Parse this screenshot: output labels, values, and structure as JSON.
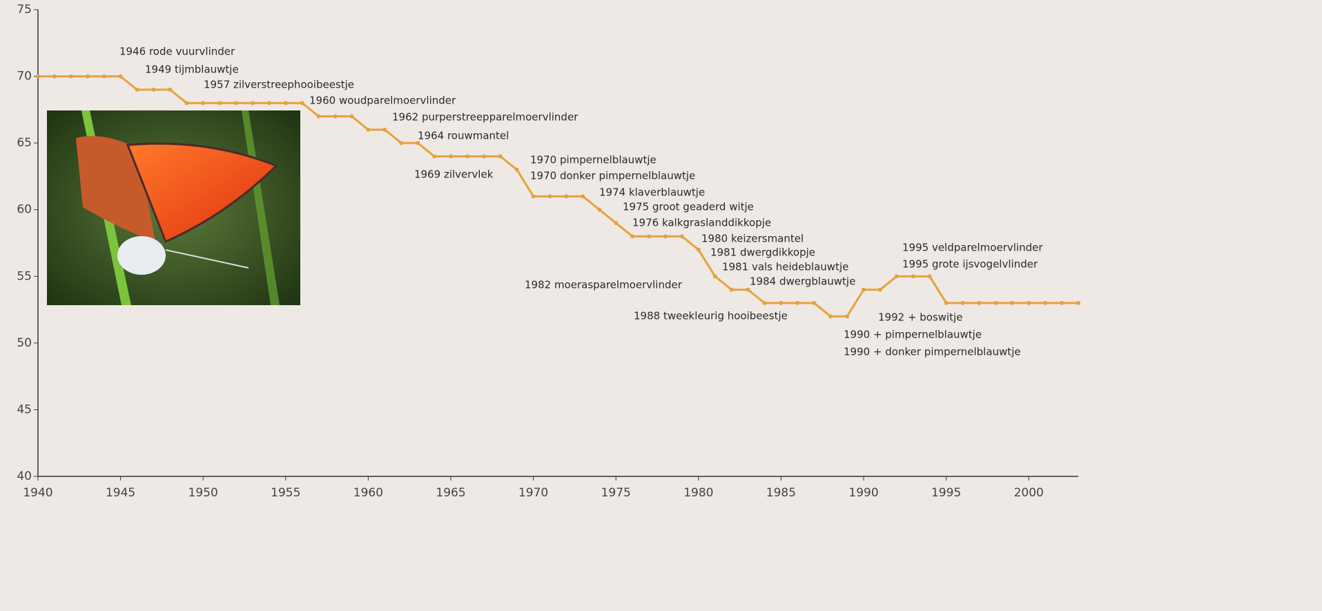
{
  "chart_data": {
    "type": "line",
    "x": [
      1940,
      1941,
      1942,
      1943,
      1944,
      1945,
      1946,
      1947,
      1948,
      1949,
      1950,
      1951,
      1952,
      1953,
      1954,
      1955,
      1956,
      1957,
      1958,
      1959,
      1960,
      1961,
      1962,
      1963,
      1964,
      1965,
      1966,
      1967,
      1968,
      1969,
      1970,
      1971,
      1972,
      1973,
      1974,
      1975,
      1976,
      1977,
      1978,
      1979,
      1980,
      1981,
      1982,
      1983,
      1984,
      1985,
      1986,
      1987,
      1988,
      1989,
      1990,
      1991,
      1992,
      1993,
      1994,
      1995,
      1996,
      1997,
      1998,
      1999,
      2000,
      2001,
      2002,
      2003
    ],
    "values": [
      70,
      70,
      70,
      70,
      70,
      70,
      69,
      69,
      69,
      68,
      68,
      68,
      68,
      68,
      68,
      68,
      68,
      67,
      67,
      67,
      66,
      66,
      65,
      65,
      64,
      64,
      64,
      64,
      64,
      63,
      61,
      61,
      61,
      61,
      60,
      59,
      58,
      58,
      58,
      58,
      57,
      55,
      54,
      54,
      53,
      53,
      53,
      53,
      52,
      52,
      54,
      54,
      55,
      55,
      55,
      53,
      53,
      53,
      53,
      53,
      53,
      53,
      53,
      53
    ],
    "color": "#e6a23c",
    "xlim": [
      1940,
      2003
    ],
    "ylim": [
      40,
      75
    ],
    "xticks": [
      1940,
      1945,
      1950,
      1955,
      1960,
      1965,
      1970,
      1975,
      1980,
      1985,
      1990,
      1995,
      2000
    ],
    "yticks": [
      40,
      45,
      50,
      55,
      60,
      65,
      70,
      75
    ],
    "annotations": [
      "1946 rode vuurvlinder",
      "1949 tijmblauwtje",
      "1957 zilverstreephooibeestje",
      "1960 woudparelmoervlinder",
      "1962  purperstreepparelmoervlinder",
      "1964 rouwmantel",
      "1969 zilvervlek",
      "1970 pimpernelblauwtje",
      "1970 donker pimpernelblauwtje",
      "1974 klaverblauwtje",
      "1975 groot geaderd witje",
      "1976 kalkgraslanddikkopje",
      "1980 keizersmantel",
      "1981 dwergdikkopje",
      "1981 vals heideblauwtje",
      "1984 dwergblauwtje",
      "1982 moerasparelmoervlinder",
      "1988 tweekleurig hooibeestje",
      "1992 + boswitje",
      "1990 + pimpernelblauwtje",
      "1990 + donker pimpernelblauwtje",
      "1995 veldparelmoervlinder",
      "1995 grote ijsvogelvlinder"
    ]
  }
}
